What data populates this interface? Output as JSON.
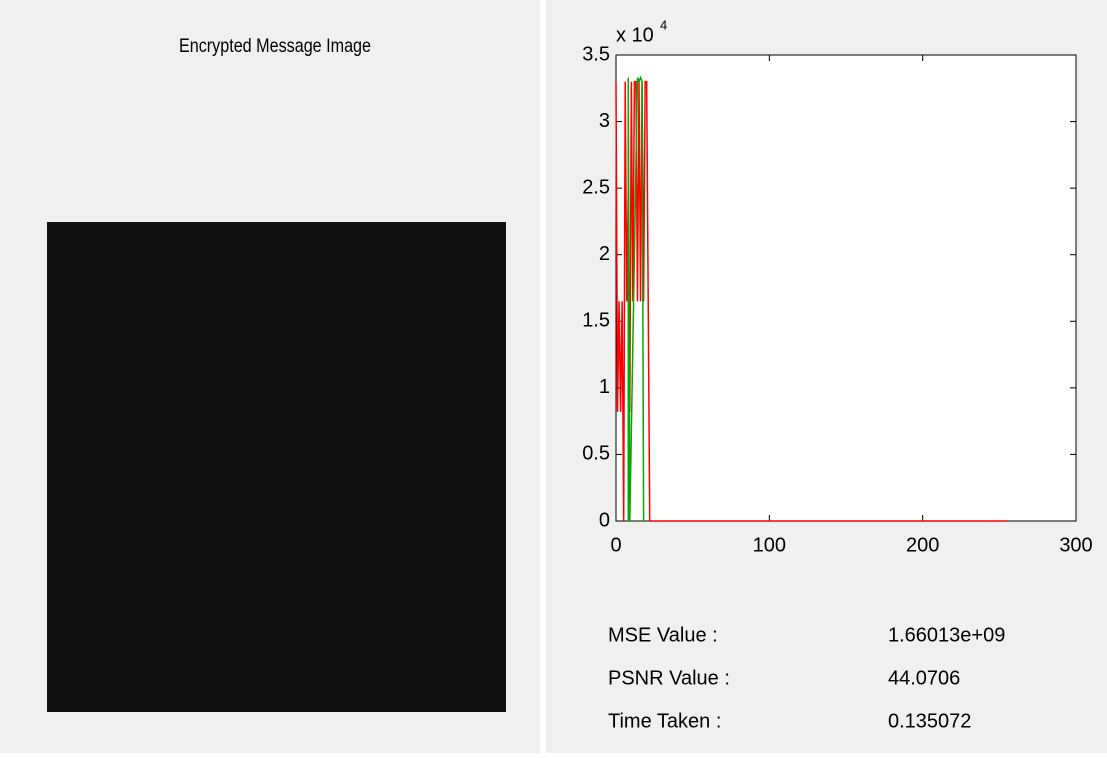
{
  "image_panel": {
    "title": "Encrypted Message Image"
  },
  "chart_data": {
    "type": "line",
    "y_scale_label": {
      "base": "x 10",
      "exponent": "4"
    },
    "xlim": [
      0,
      300
    ],
    "xticks": [
      0,
      100,
      200,
      300
    ],
    "ylim": [
      0,
      3.5
    ],
    "yticks": [
      0,
      0.5,
      1,
      1.5,
      2,
      2.5,
      3,
      3.5
    ],
    "series": [
      {
        "color": "#ff0000",
        "x": [
          0,
          1,
          2,
          3,
          4,
          5,
          6,
          7,
          8,
          9,
          10,
          11,
          12,
          13,
          14,
          15,
          16,
          17,
          18,
          19,
          20,
          21,
          22,
          23,
          255
        ],
        "values": [
          3.3,
          0.82,
          1.65,
          0.82,
          1.65,
          0,
          3.3,
          1.65,
          2.48,
          0.82,
          3.3,
          1.65,
          3.3,
          3.3,
          1.65,
          3.3,
          1.65,
          3.3,
          1.65,
          3.3,
          3.3,
          1.65,
          0,
          0,
          0
        ]
      },
      {
        "color": "#00aa00",
        "x": [
          8,
          8,
          9,
          14,
          15,
          16,
          17,
          18
        ],
        "values": [
          0,
          3.33,
          0,
          3.33,
          3.3,
          3.33,
          3.3,
          0
        ]
      }
    ]
  },
  "stats": [
    {
      "label": "MSE Value :",
      "value": "1.66013e+09"
    },
    {
      "label": "PSNR Value :",
      "value": "44.0706"
    },
    {
      "label": "Time Taken :",
      "value": "0.135072"
    }
  ]
}
